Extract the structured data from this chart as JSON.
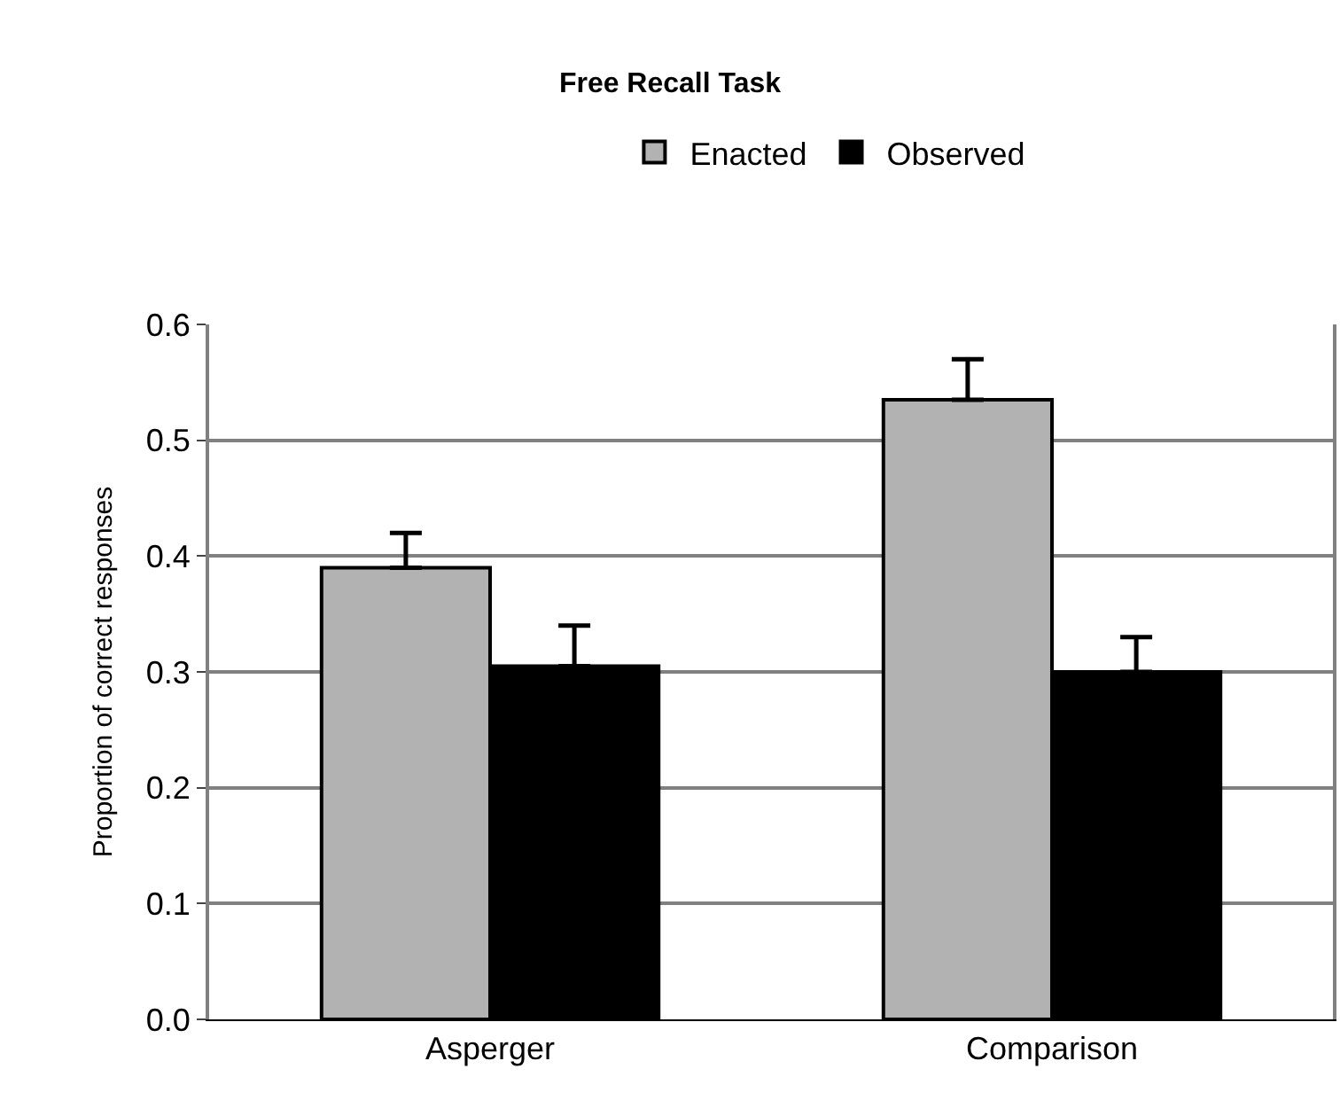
{
  "chart_data": {
    "type": "bar",
    "title": "Free Recall Task",
    "ylabel": "Proportion of correct responses",
    "categories": [
      "Asperger",
      "Comparison"
    ],
    "series": [
      {
        "name": "Enacted",
        "color": "#b2b2b2",
        "values": [
          0.39,
          0.535
        ],
        "errors": [
          [
            0.39,
            0.42
          ],
          [
            0.535,
            0.57
          ]
        ]
      },
      {
        "name": "Observed",
        "color": "#000000",
        "values": [
          0.305,
          0.3
        ],
        "errors": [
          [
            0.305,
            0.34
          ],
          [
            0.3,
            0.33
          ]
        ]
      }
    ],
    "ylim": [
      0,
      0.6
    ],
    "yticks": [
      {
        "value": 0,
        "label": "0.0"
      },
      0.1,
      0.2,
      0.3,
      0.4,
      0.5,
      0.6
    ],
    "grid": "y",
    "legend": "top"
  }
}
